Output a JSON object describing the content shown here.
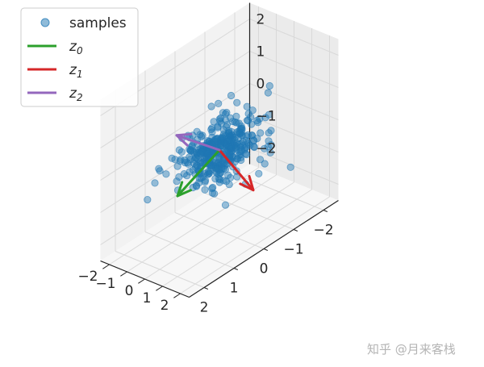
{
  "chart_data": {
    "type": "scatter3d",
    "xlabel": "",
    "ylabel": "",
    "zlabel": "",
    "grid": true,
    "legend_position": "top-left",
    "x_ticks": [
      "2",
      "1",
      "0",
      "−1",
      "−2"
    ],
    "y_ticks": [
      "2",
      "1",
      "0",
      "−1",
      "−2"
    ],
    "z_ticks": [
      "2",
      "1",
      "0",
      "−1",
      "−2"
    ],
    "xlim": [
      -2.5,
      2.5
    ],
    "ylim": [
      -2.5,
      2.5
    ],
    "zlim": [
      -2.5,
      2.5
    ],
    "point_color": "#1f77b4",
    "series": [
      {
        "name": "samples",
        "kind": "scatter",
        "color": "#1f77b4",
        "count": 400
      },
      {
        "name": "z",
        "subscript": "0",
        "kind": "vector",
        "color": "#2ca02c",
        "from": [
          0,
          0,
          0
        ],
        "to": [
          2.0,
          1.0,
          0.0
        ]
      },
      {
        "name": "z",
        "subscript": "1",
        "kind": "vector",
        "color": "#d62728",
        "from": [
          0,
          0,
          0
        ],
        "to": [
          -0.6,
          0.9,
          -1.4
        ]
      },
      {
        "name": "z",
        "subscript": "2",
        "kind": "vector",
        "color": "#9467bd",
        "from": [
          0,
          0,
          0
        ],
        "to": [
          0.6,
          -1.4,
          0.5
        ]
      }
    ]
  },
  "watermark": "知乎 @月来客栈"
}
